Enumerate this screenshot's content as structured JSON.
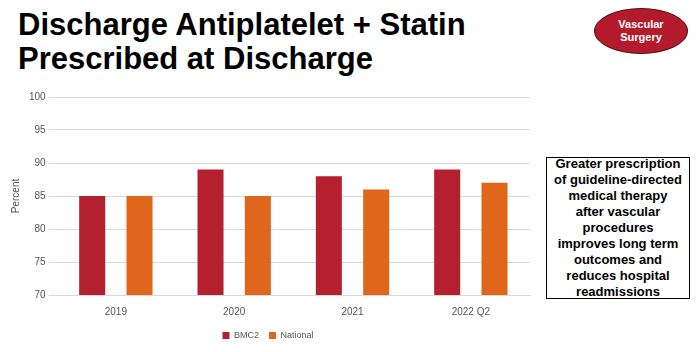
{
  "chart_data": {
    "type": "bar",
    "title": "Discharge Antiplatelet + Statin\nPrescribed at Discharge",
    "y_label": "Percent",
    "categories": [
      "2019",
      "2020",
      "2021",
      "2022 Q2"
    ],
    "series": [
      {
        "name": "BMC2",
        "color": "#b5202e",
        "values": [
          85,
          89,
          88,
          89
        ]
      },
      {
        "name": "National",
        "color": "#e0661c",
        "values": [
          85,
          85,
          86,
          87
        ]
      }
    ],
    "ylim": [
      70,
      100
    ],
    "yticks": [
      70,
      75,
      80,
      85,
      90,
      95,
      100
    ],
    "grid": true,
    "legend": "bottom"
  },
  "badge": "Vascular Surgery",
  "note": "Greater prescription of guideline-directed medical therapy after vascular procedures improves long term outcomes and reduces hospital readmissions"
}
